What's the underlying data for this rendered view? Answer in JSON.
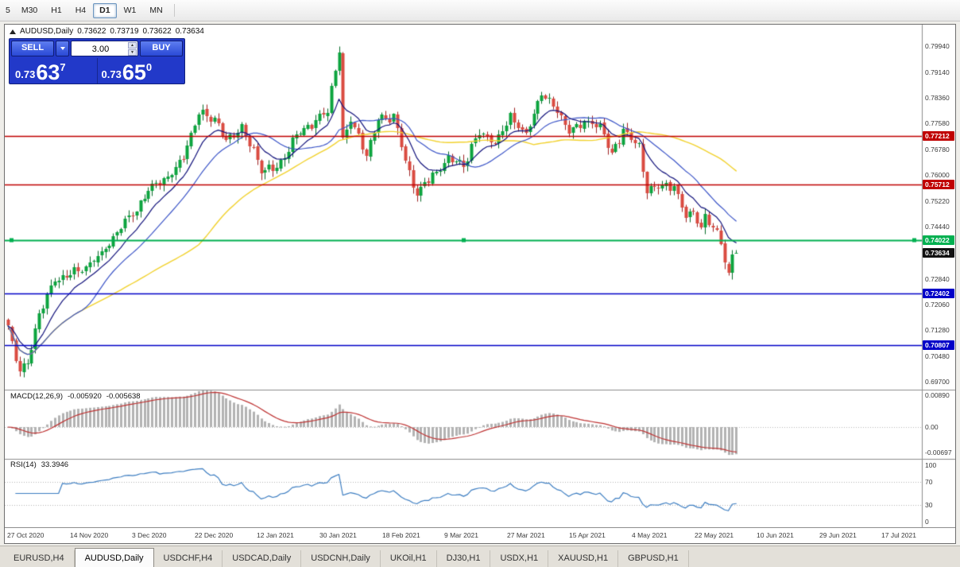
{
  "toolbar": {
    "timeframes": [
      {
        "label": "5",
        "clipped": true
      },
      {
        "label": "M30"
      },
      {
        "label": "H1"
      },
      {
        "label": "H4"
      },
      {
        "label": "D1",
        "active": true
      },
      {
        "label": "W1"
      },
      {
        "label": "MN"
      }
    ]
  },
  "header": {
    "symbol": "AUDUSD,Daily",
    "open": "0.73622",
    "high": "0.73719",
    "low": "0.73622",
    "close": "0.73634"
  },
  "one_click": {
    "sell_label": "SELL",
    "buy_label": "BUY",
    "amount": "3.00",
    "sell_price_prefix": "0.73",
    "sell_price_big": "63",
    "sell_price_sup": "7",
    "buy_price_prefix": "0.73",
    "buy_price_big": "65",
    "buy_price_sup": "0"
  },
  "icons": {
    "spinner_up": "▲",
    "spinner_down": "▼"
  },
  "macd": {
    "title": "MACD(12,26,9)",
    "value": "-0.005920",
    "signal": "-0.005638"
  },
  "rsi": {
    "title": "RSI(14)",
    "value": "33.3946"
  },
  "tabs": [
    {
      "label": "EURUSD,H4"
    },
    {
      "label": "AUDUSD,Daily",
      "active": true
    },
    {
      "label": "USDCHF,H4"
    },
    {
      "label": "USDCAD,Daily"
    },
    {
      "label": "USDCNH,Daily"
    },
    {
      "label": "UKOil,H1"
    },
    {
      "label": "DJ30,H1"
    },
    {
      "label": "USDX,H1"
    },
    {
      "label": "XAUUSD,H1"
    },
    {
      "label": "GBPUSD,H1"
    }
  ],
  "chart_data": {
    "type": "candlestick",
    "symbol": "AUDUSD",
    "period": "Daily",
    "current_ohlc": {
      "open": 0.73622,
      "high": 0.73719,
      "low": 0.73622,
      "close": 0.73634
    },
    "bid": 0.73637,
    "ask": 0.7365,
    "ylim": [
      0.6948,
      0.806
    ],
    "y_tick_labels": [
      "0.79940",
      "0.79140",
      "0.78360",
      "0.77580",
      "0.76780",
      "0.76000",
      "0.75220",
      "0.74440",
      "0.73660",
      "0.72840",
      "0.72060",
      "0.71280",
      "0.70480",
      "0.69700"
    ],
    "x_labels": [
      "27 Oct 2020",
      "14 Nov 2020",
      "3 Dec 2020",
      "22 Dec 2020",
      "12 Jan 2021",
      "30 Jan 2021",
      "18 Feb 2021",
      "9 Mar 2021",
      "27 Mar 2021",
      "15 Apr 2021",
      "4 May 2021",
      "22 May 2021",
      "10 Jun 2021",
      "29 Jun 2021",
      "17 Jul 2021"
    ],
    "bars": 188,
    "bar_colors": {
      "up": "#0ca43e",
      "up_wick": "#056b27",
      "down": "#da4b41",
      "down_wick": "#9e1f1f"
    },
    "price_path": [
      [
        0,
        0.7128
      ],
      [
        1,
        0.7085
      ],
      [
        3,
        0.7003
      ],
      [
        5,
        0.7035
      ],
      [
        8,
        0.718
      ],
      [
        12,
        0.727
      ],
      [
        16,
        0.73
      ],
      [
        20,
        0.733
      ],
      [
        24,
        0.7355
      ],
      [
        27,
        0.74
      ],
      [
        30,
        0.747
      ],
      [
        33,
        0.75
      ],
      [
        36,
        0.756
      ],
      [
        40,
        0.758
      ],
      [
        43,
        0.762
      ],
      [
        45,
        0.7665
      ],
      [
        49,
        0.779
      ],
      [
        53,
        0.7765
      ],
      [
        56,
        0.7705
      ],
      [
        60,
        0.7755
      ],
      [
        63,
        0.768
      ],
      [
        65,
        0.7605
      ],
      [
        69,
        0.7625
      ],
      [
        74,
        0.773
      ],
      [
        79,
        0.7755
      ],
      [
        82,
        0.78
      ],
      [
        84,
        0.7925
      ],
      [
        85,
        0.7985
      ],
      [
        86,
        0.7715
      ],
      [
        88,
        0.778
      ],
      [
        92,
        0.7655
      ],
      [
        95,
        0.7775
      ],
      [
        99,
        0.7785
      ],
      [
        103,
        0.7605
      ],
      [
        105,
        0.7535
      ],
      [
        109,
        0.76
      ],
      [
        113,
        0.766
      ],
      [
        117,
        0.7625
      ],
      [
        121,
        0.773
      ],
      [
        125,
        0.7705
      ],
      [
        129,
        0.7785
      ],
      [
        133,
        0.7715
      ],
      [
        137,
        0.7855
      ],
      [
        140,
        0.7825
      ],
      [
        144,
        0.7735
      ],
      [
        148,
        0.7755
      ],
      [
        152,
        0.776
      ],
      [
        155,
        0.7665
      ],
      [
        158,
        0.773
      ],
      [
        162,
        0.7685
      ],
      [
        164,
        0.7555
      ],
      [
        167,
        0.7575
      ],
      [
        171,
        0.756
      ],
      [
        174,
        0.747
      ],
      [
        176,
        0.7492
      ],
      [
        178,
        0.7438
      ],
      [
        179,
        0.7488
      ],
      [
        181,
        0.7445
      ],
      [
        183,
        0.7402
      ],
      [
        184,
        0.7335
      ],
      [
        185,
        0.7292
      ],
      [
        186,
        0.7358
      ],
      [
        187,
        0.73634
      ]
    ],
    "moving_averages": [
      {
        "method": "sma",
        "period": 50,
        "color": "#f2d22e"
      },
      {
        "method": "sma",
        "period": 20,
        "color": "#3c55c8"
      },
      {
        "method": "ema",
        "period": 10,
        "color": "#12127c"
      }
    ],
    "horizontal_lines": [
      {
        "value": 0.77212,
        "label": "0.77212",
        "color": "#c00000",
        "selected": false
      },
      {
        "value": 0.75712,
        "label": "0.75712",
        "color": "#c00000",
        "selected": false
      },
      {
        "value": 0.74022,
        "label": "0.74022",
        "color": "#00b050",
        "selected": true
      },
      {
        "value": 0.72402,
        "label": "0.72402",
        "color": "#0000c8",
        "selected": false
      },
      {
        "value": 0.70807,
        "label": "0.70807",
        "color": "#0000c8",
        "selected": false
      }
    ],
    "current_price_marker": {
      "value": 0.73634,
      "label": "0.73634",
      "color": "#111111"
    },
    "indicators": [
      {
        "name": "MACD",
        "params": [
          12,
          26,
          9
        ],
        "values": [
          -0.00592,
          -0.005638
        ],
        "histogram_color": "#b3b3b3",
        "signal_color": "#bf3434",
        "y_tick_labels": [
          "0.00890",
          "0.00",
          "-0.00697"
        ]
      },
      {
        "name": "RSI",
        "params": [
          14
        ],
        "value": 33.3946,
        "line_color": "#3d7ec2",
        "levels": [
          70,
          30
        ],
        "y_tick_labels": [
          "100",
          "70",
          "30",
          "0"
        ]
      }
    ]
  }
}
